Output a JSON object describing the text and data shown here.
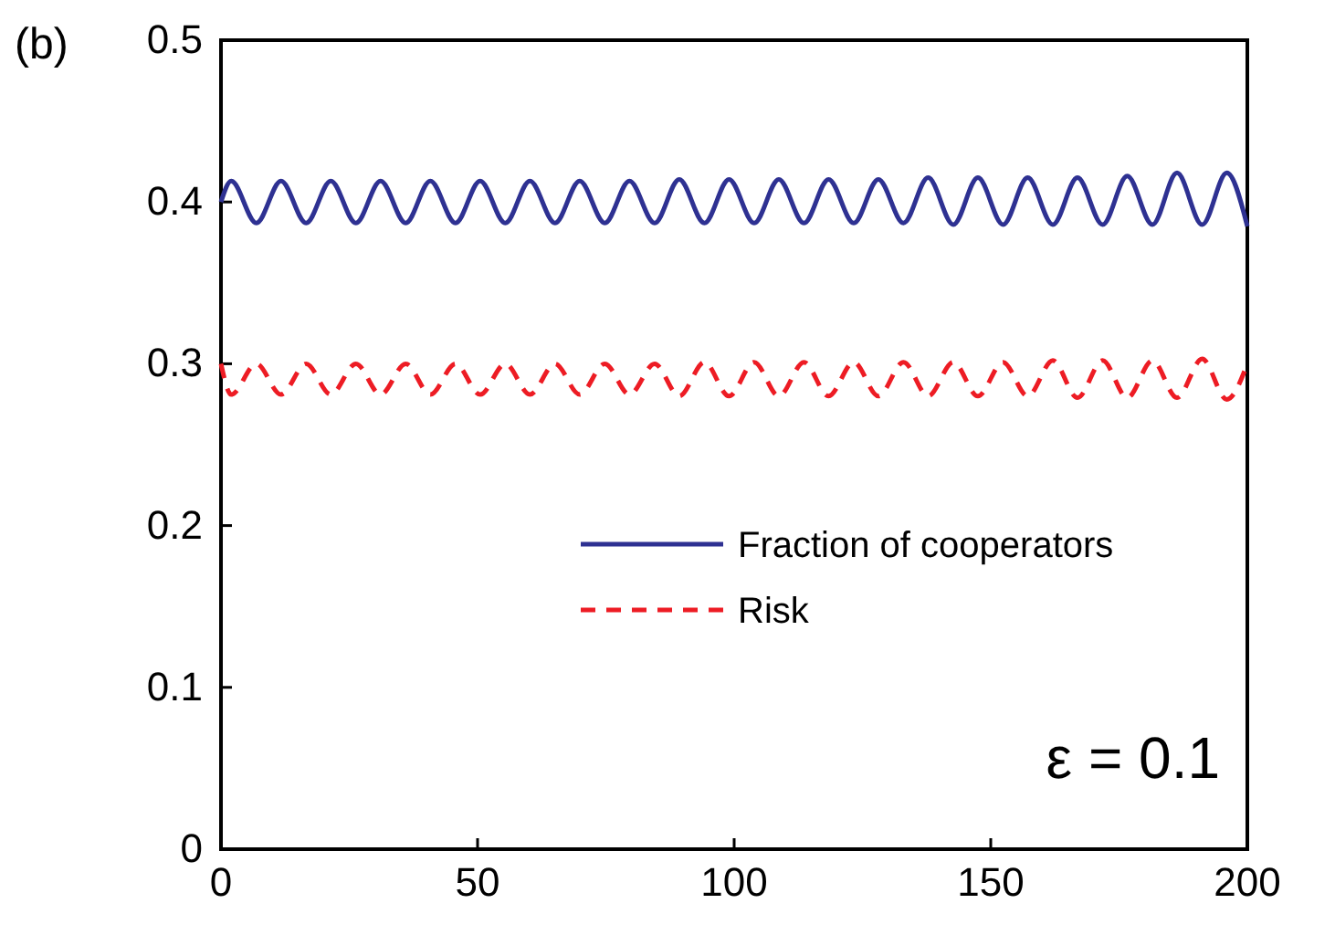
{
  "chart_data": {
    "type": "line",
    "title": "(b)",
    "xlim": [
      0,
      200
    ],
    "ylim": [
      0,
      0.5
    ],
    "xticks": [
      0,
      50,
      100,
      150,
      200
    ],
    "yticks": [
      0,
      0.1,
      0.2,
      0.3,
      0.4,
      0.5
    ],
    "grid": false,
    "legend": "right",
    "annotations": [
      "ε = 0.1"
    ],
    "x": [
      0,
      2,
      6.9,
      11.7,
      16.6,
      21.4,
      26.3,
      31.1,
      36,
      40.8,
      45.7,
      50.5,
      55.4,
      60.2,
      65.1,
      69.9,
      74.8,
      79.6,
      84.5,
      89.3,
      94.2,
      99,
      103.9,
      108.7,
      113.6,
      118.4,
      123.3,
      128.1,
      133,
      137.8,
      142.7,
      147.5,
      152.4,
      157.2,
      162.1,
      166.9,
      171.8,
      176.6,
      181.5,
      186.3,
      191.2,
      196,
      200
    ],
    "series": [
      {
        "name": "Fraction of cooperators",
        "color": "#2e3192",
        "line_style": "solid",
        "values": [
          0.4,
          0.413,
          0.387,
          0.413,
          0.387,
          0.413,
          0.387,
          0.413,
          0.387,
          0.413,
          0.387,
          0.413,
          0.387,
          0.413,
          0.387,
          0.413,
          0.387,
          0.413,
          0.387,
          0.414,
          0.387,
          0.414,
          0.387,
          0.414,
          0.387,
          0.414,
          0.387,
          0.414,
          0.387,
          0.415,
          0.386,
          0.415,
          0.386,
          0.415,
          0.386,
          0.415,
          0.386,
          0.416,
          0.386,
          0.418,
          0.386,
          0.418,
          0.385
        ]
      },
      {
        "name": "Risk",
        "color": "#ed1c24",
        "line_style": "dashed",
        "values": [
          0.3,
          0.281,
          0.3,
          0.281,
          0.3,
          0.281,
          0.3,
          0.281,
          0.3,
          0.281,
          0.3,
          0.281,
          0.3,
          0.281,
          0.3,
          0.281,
          0.3,
          0.281,
          0.3,
          0.28,
          0.301,
          0.28,
          0.301,
          0.28,
          0.301,
          0.28,
          0.301,
          0.28,
          0.301,
          0.28,
          0.301,
          0.28,
          0.301,
          0.28,
          0.302,
          0.279,
          0.302,
          0.279,
          0.302,
          0.279,
          0.303,
          0.278,
          0.3
        ]
      }
    ]
  }
}
